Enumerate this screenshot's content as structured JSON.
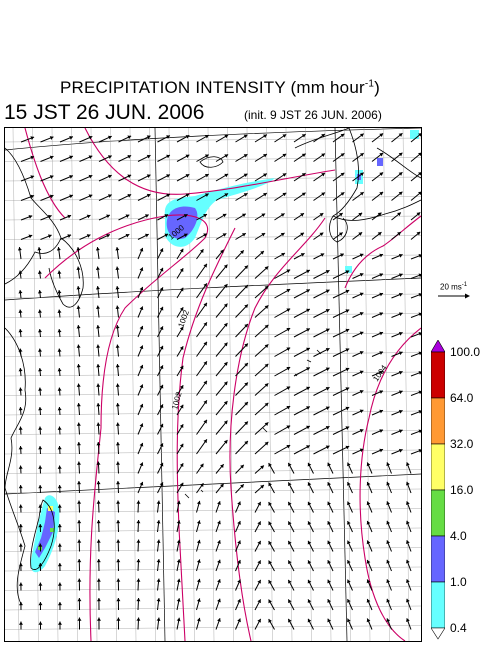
{
  "title": {
    "main": "PRECIPITATION INTENSITY (mm hour",
    "unit_exponent": "-1",
    "close_paren": ")"
  },
  "valid_time": "15 JST 26 JUN. 2006",
  "init_time": "(init. 9 JST 26 JUN. 2006)",
  "wind_scale": {
    "label": "20 ms",
    "exponent": "-1"
  },
  "isobar_labels": [
    "1000",
    "1002",
    "1002",
    "1004"
  ],
  "colorbar": {
    "labels": [
      "100.0",
      "64.0",
      "32.0",
      "16.0",
      "4.0",
      "1.0",
      "0.4"
    ],
    "colors": [
      "#cc0000",
      "#ff9933",
      "#ffff66",
      "#66dd44",
      "#6666ff",
      "#66ffff"
    ],
    "over_color": "#aa00dd",
    "under_color": "#ffffff"
  },
  "colors": {
    "isobar": "#cc0066",
    "coast": "#000000",
    "grid": "#9a9a9a"
  }
}
